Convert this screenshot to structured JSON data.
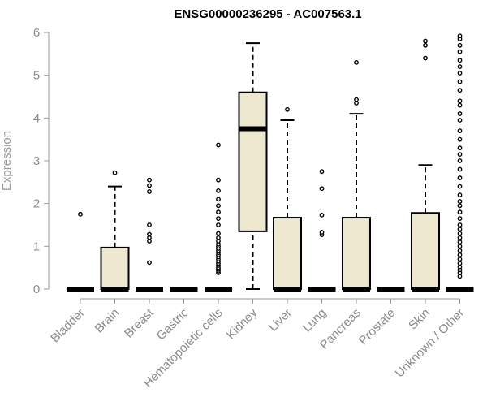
{
  "chart_data": {
    "type": "boxplot",
    "title": "ENSG00000236295 - AC007563.1",
    "ylabel": "Expression",
    "xlabel": "",
    "ylim": [
      0,
      6
    ],
    "yticks": [
      0,
      1,
      2,
      3,
      4,
      5,
      6
    ],
    "box_fill": "#EEE8D0",
    "categories": [
      "Bladder",
      "Brain",
      "Breast",
      "Gastric",
      "Hematopoietic cells",
      "Kidney",
      "Liver",
      "Lung",
      "Pancreas",
      "Prostate",
      "Skin",
      "Unknown / Other"
    ],
    "boxes": [
      {
        "q1": 0,
        "median": 0,
        "q3": 0,
        "whisker_low": 0,
        "whisker_high": 0,
        "outliers": [
          1.75
        ]
      },
      {
        "q1": 0,
        "median": 0,
        "q3": 0.97,
        "whisker_low": 0,
        "whisker_high": 2.4,
        "outliers": [
          2.72
        ]
      },
      {
        "q1": 0,
        "median": 0,
        "q3": 0,
        "whisker_low": 0,
        "whisker_high": 0,
        "outliers": [
          0.62,
          1.12,
          1.2,
          1.28,
          1.5,
          2.28,
          2.42,
          2.55
        ]
      },
      {
        "q1": 0,
        "median": 0,
        "q3": 0,
        "whisker_low": 0,
        "whisker_high": 0,
        "outliers": []
      },
      {
        "q1": 0,
        "median": 0,
        "q3": 0,
        "whisker_low": 0,
        "whisker_high": 0,
        "outliers": [
          0.38,
          0.42,
          0.46,
          0.5,
          0.55,
          0.6,
          0.65,
          0.7,
          0.75,
          0.8,
          0.85,
          0.9,
          0.95,
          1.0,
          1.05,
          1.12,
          1.2,
          1.3,
          1.5,
          1.65,
          1.8,
          1.95,
          2.1,
          2.3,
          2.55,
          3.37
        ]
      },
      {
        "q1": 1.35,
        "median": 3.75,
        "q3": 4.6,
        "whisker_low": 0,
        "whisker_high": 5.75,
        "outliers": []
      },
      {
        "q1": 0,
        "median": 0,
        "q3": 1.67,
        "whisker_low": 0,
        "whisker_high": 3.95,
        "outliers": [
          4.2
        ]
      },
      {
        "q1": 0,
        "median": 0,
        "q3": 0,
        "whisker_low": 0,
        "whisker_high": 0,
        "outliers": [
          1.27,
          1.33,
          1.73,
          2.35,
          2.75
        ]
      },
      {
        "q1": 0,
        "median": 0,
        "q3": 1.67,
        "whisker_low": 0,
        "whisker_high": 4.1,
        "outliers": [
          4.35,
          4.43,
          5.3
        ]
      },
      {
        "q1": 0,
        "median": 0,
        "q3": 0,
        "whisker_low": 0,
        "whisker_high": 0,
        "outliers": []
      },
      {
        "q1": 0,
        "median": 0,
        "q3": 1.78,
        "whisker_low": 0,
        "whisker_high": 2.9,
        "outliers": [
          5.4,
          5.7,
          5.8
        ]
      },
      {
        "q1": 0,
        "median": 0,
        "q3": 0,
        "whisker_low": 0,
        "whisker_high": 0,
        "outliers": [
          0.3,
          0.38,
          0.45,
          0.52,
          0.6,
          0.7,
          0.8,
          0.9,
          1.0,
          1.1,
          1.2,
          1.3,
          1.4,
          1.5,
          1.65,
          1.8,
          1.95,
          2.05,
          2.2,
          2.4,
          2.6,
          2.8,
          3.0,
          3.15,
          3.3,
          3.5,
          3.7,
          3.95,
          4.1,
          4.3,
          4.4,
          4.65,
          4.85,
          5.05,
          5.2,
          5.35,
          5.55,
          5.7,
          5.85,
          5.92
        ]
      }
    ]
  }
}
